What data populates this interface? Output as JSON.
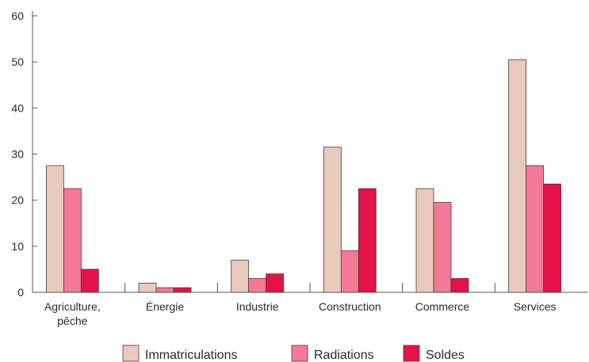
{
  "chart_data": {
    "type": "bar",
    "categories": [
      "Agriculture,\npêche",
      "Énergie",
      "Industrie",
      "Construction",
      "Commerce",
      "Services"
    ],
    "series": [
      {
        "name": "Immatriculations",
        "values": [
          27.5,
          2,
          7,
          31.5,
          22.5,
          50.5
        ],
        "color": "#e8cbbd"
      },
      {
        "name": "Radiations",
        "values": [
          22.5,
          1,
          3,
          9,
          19.5,
          27.5
        ],
        "color": "#f27a96"
      },
      {
        "name": "Soldes",
        "values": [
          5,
          1,
          4,
          22.5,
          3,
          23.5
        ],
        "color": "#e3124a"
      }
    ],
    "ylim": [
      0,
      60
    ],
    "yticks": [
      0,
      10,
      20,
      30,
      40,
      50,
      60
    ],
    "grid": false,
    "legend_position": "bottom",
    "title": "",
    "xlabel": "",
    "ylabel": ""
  }
}
